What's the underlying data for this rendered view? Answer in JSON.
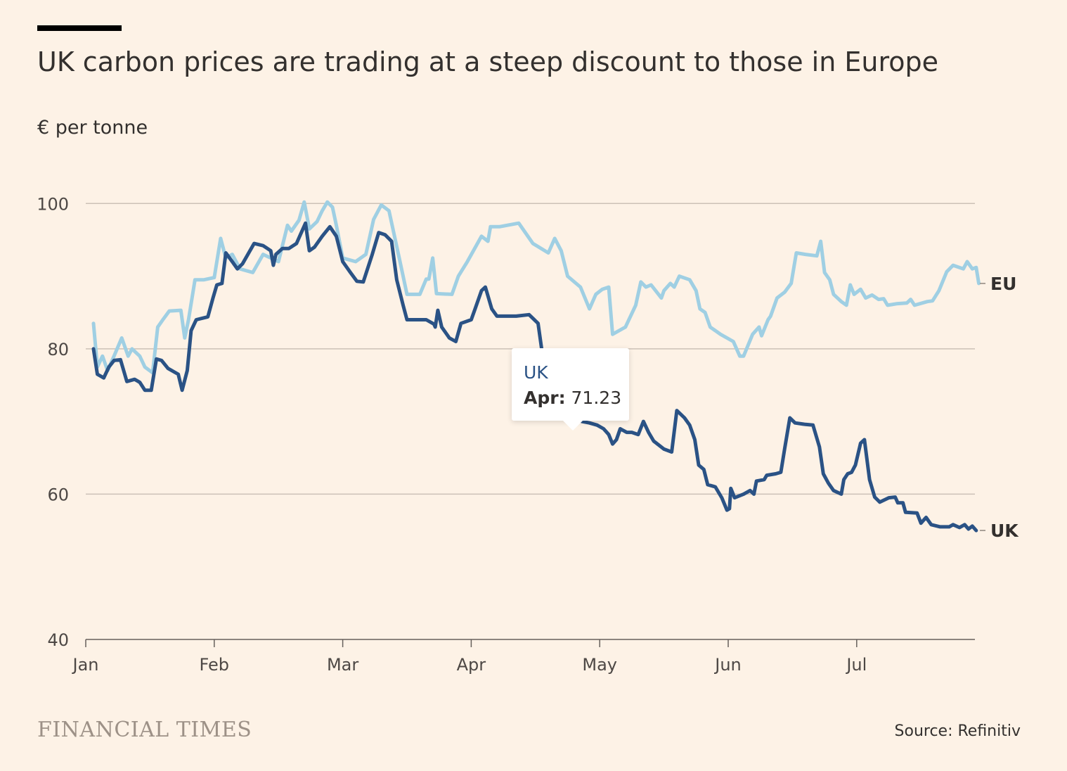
{
  "header": {
    "title": "UK carbon prices are trading at a steep discount to those in Europe",
    "unit_label": "€ per tonne"
  },
  "tooltip": {
    "series": "UK",
    "label": "Apr:",
    "value": "71.23"
  },
  "footer": {
    "brand": "FINANCIAL TIMES",
    "source": "Source: Refinitiv"
  },
  "colors": {
    "background": "#fdf2e6",
    "uk_series": "#2a5285",
    "eu_series": "#9fcfe3",
    "gridline": "#ccc1b7",
    "text": "#33302e"
  },
  "chart_data": {
    "type": "line",
    "ylabel": "€ per tonne",
    "ylim": [
      40,
      110
    ],
    "yticks": [
      40,
      60,
      80,
      100
    ],
    "xlim": [
      0,
      6.85
    ],
    "xticks": [
      {
        "value": 0,
        "label": "Jan"
      },
      {
        "value": 1,
        "label": "Feb"
      },
      {
        "value": 2,
        "label": "Mar"
      },
      {
        "value": 3,
        "label": "Apr"
      },
      {
        "value": 4,
        "label": "May"
      },
      {
        "value": 5,
        "label": "Jun"
      },
      {
        "value": 6,
        "label": "Jul"
      }
    ],
    "grid": true,
    "series": [
      {
        "name": "EU",
        "label_position": "end",
        "points": [
          [
            0.06,
            83.5
          ],
          [
            0.09,
            77.5
          ],
          [
            0.13,
            79
          ],
          [
            0.17,
            77
          ],
          [
            0.22,
            79
          ],
          [
            0.28,
            81.5
          ],
          [
            0.33,
            79
          ],
          [
            0.36,
            80
          ],
          [
            0.42,
            79
          ],
          [
            0.46,
            77.5
          ],
          [
            0.52,
            76.7
          ],
          [
            0.56,
            83
          ],
          [
            0.6,
            84
          ],
          [
            0.65,
            85.2
          ],
          [
            0.74,
            85.3
          ],
          [
            0.77,
            81.5
          ],
          [
            0.8,
            84
          ],
          [
            0.85,
            89.5
          ],
          [
            0.92,
            89.5
          ],
          [
            1,
            89.8
          ],
          [
            1.05,
            95.2
          ],
          [
            1.09,
            92.5
          ],
          [
            1.14,
            93
          ],
          [
            1.2,
            91
          ],
          [
            1.3,
            90.5
          ],
          [
            1.38,
            93
          ],
          [
            1.5,
            92
          ],
          [
            1.57,
            97
          ],
          [
            1.6,
            96.2
          ],
          [
            1.66,
            97.7
          ],
          [
            1.7,
            100.2
          ],
          [
            1.74,
            96.5
          ],
          [
            1.8,
            97.5
          ],
          [
            1.84,
            99
          ],
          [
            1.88,
            100.2
          ],
          [
            1.92,
            99.5
          ],
          [
            1.95,
            97
          ],
          [
            2,
            92.5
          ],
          [
            2.1,
            92
          ],
          [
            2.18,
            93
          ],
          [
            2.24,
            97.8
          ],
          [
            2.3,
            99.8
          ],
          [
            2.36,
            99
          ],
          [
            2.44,
            92.5
          ],
          [
            2.5,
            87.5
          ],
          [
            2.6,
            87.5
          ],
          [
            2.65,
            89.6
          ],
          [
            2.67,
            89.6
          ],
          [
            2.7,
            92.5
          ],
          [
            2.73,
            87.6
          ],
          [
            2.85,
            87.5
          ],
          [
            2.9,
            90
          ],
          [
            2.97,
            92
          ],
          [
            3.08,
            95.5
          ],
          [
            3.13,
            94.8
          ],
          [
            3.15,
            96.8
          ],
          [
            3.22,
            96.8
          ],
          [
            3.37,
            97.3
          ],
          [
            3.48,
            94.5
          ],
          [
            3.6,
            93.2
          ],
          [
            3.65,
            95.2
          ],
          [
            3.7,
            93.5
          ],
          [
            3.75,
            90
          ],
          [
            3.85,
            88.5
          ],
          [
            3.92,
            85.5
          ],
          [
            3.97,
            87.5
          ],
          [
            4.02,
            88.2
          ],
          [
            4.07,
            88.5
          ],
          [
            4.1,
            82
          ],
          [
            4.2,
            83
          ],
          [
            4.28,
            86
          ],
          [
            4.32,
            89.2
          ],
          [
            4.36,
            88.5
          ],
          [
            4.4,
            88.8
          ],
          [
            4.48,
            87
          ],
          [
            4.5,
            88
          ],
          [
            4.55,
            89
          ],
          [
            4.58,
            88.5
          ],
          [
            4.62,
            90
          ],
          [
            4.7,
            89.5
          ],
          [
            4.75,
            88
          ],
          [
            4.78,
            85.5
          ],
          [
            4.82,
            85
          ],
          [
            4.86,
            83
          ],
          [
            4.94,
            82
          ],
          [
            5.04,
            81
          ],
          [
            5.09,
            79
          ],
          [
            5.12,
            79
          ],
          [
            5.19,
            82
          ],
          [
            5.24,
            83
          ],
          [
            5.26,
            81.8
          ],
          [
            5.31,
            84
          ],
          [
            5.33,
            84.5
          ],
          [
            5.38,
            87
          ],
          [
            5.44,
            87.8
          ],
          [
            5.49,
            89
          ],
          [
            5.53,
            93.2
          ],
          [
            5.6,
            93
          ],
          [
            5.69,
            92.8
          ],
          [
            5.72,
            94.8
          ],
          [
            5.75,
            90.5
          ],
          [
            5.79,
            89.5
          ],
          [
            5.82,
            87.5
          ],
          [
            5.88,
            86.5
          ],
          [
            5.92,
            86
          ],
          [
            5.95,
            88.8
          ],
          [
            5.98,
            87.5
          ],
          [
            6.03,
            88.2
          ],
          [
            6.07,
            87
          ],
          [
            6.12,
            87.4
          ],
          [
            6.17,
            86.8
          ],
          [
            6.21,
            86.9
          ],
          [
            6.24,
            86
          ],
          [
            6.31,
            86.2
          ],
          [
            6.39,
            86.3
          ],
          [
            6.42,
            86.8
          ],
          [
            6.45,
            86
          ],
          [
            6.55,
            86.5
          ],
          [
            6.59,
            86.6
          ],
          [
            6.64,
            88
          ],
          [
            6.7,
            90.6
          ],
          [
            6.75,
            91.5
          ],
          [
            6.83,
            91
          ],
          [
            6.86,
            92
          ],
          [
            6.9,
            91
          ],
          [
            6.93,
            91.2
          ],
          [
            6.95,
            89
          ]
        ]
      },
      {
        "name": "UK",
        "label_position": "end",
        "points": [
          [
            0.06,
            80
          ],
          [
            0.09,
            76.5
          ],
          [
            0.14,
            76
          ],
          [
            0.18,
            77.5
          ],
          [
            0.22,
            78.4
          ],
          [
            0.27,
            78.5
          ],
          [
            0.32,
            75.5
          ],
          [
            0.38,
            75.8
          ],
          [
            0.42,
            75.4
          ],
          [
            0.46,
            74.3
          ],
          [
            0.51,
            74.3
          ],
          [
            0.55,
            78.6
          ],
          [
            0.59,
            78.4
          ],
          [
            0.64,
            77.3
          ],
          [
            0.72,
            76.5
          ],
          [
            0.75,
            74.3
          ],
          [
            0.79,
            77
          ],
          [
            0.82,
            82.5
          ],
          [
            0.86,
            84
          ],
          [
            0.95,
            84.4
          ],
          [
            0.99,
            87
          ],
          [
            1.02,
            88.8
          ],
          [
            1.06,
            89
          ],
          [
            1.09,
            93.2
          ],
          [
            1.14,
            92
          ],
          [
            1.18,
            91
          ],
          [
            1.22,
            91.7
          ],
          [
            1.31,
            94.5
          ],
          [
            1.38,
            94.2
          ],
          [
            1.44,
            93.5
          ],
          [
            1.46,
            91.5
          ],
          [
            1.48,
            93
          ],
          [
            1.53,
            93.8
          ],
          [
            1.58,
            93.8
          ],
          [
            1.64,
            94.5
          ],
          [
            1.71,
            97.3
          ],
          [
            1.74,
            93.5
          ],
          [
            1.78,
            94
          ],
          [
            1.84,
            95.5
          ],
          [
            1.9,
            96.8
          ],
          [
            1.95,
            95.5
          ],
          [
            2,
            92
          ],
          [
            2.06,
            90.5
          ],
          [
            2.11,
            89.3
          ],
          [
            2.16,
            89.2
          ],
          [
            2.23,
            93
          ],
          [
            2.28,
            96
          ],
          [
            2.33,
            95.7
          ],
          [
            2.38,
            94.8
          ],
          [
            2.42,
            89.5
          ],
          [
            2.47,
            86
          ],
          [
            2.5,
            84
          ],
          [
            2.58,
            84
          ],
          [
            2.65,
            84
          ],
          [
            2.71,
            83.4
          ],
          [
            2.72,
            83
          ],
          [
            2.74,
            85.3
          ],
          [
            2.77,
            83
          ],
          [
            2.83,
            81.5
          ],
          [
            2.88,
            81
          ],
          [
            2.92,
            83.5
          ],
          [
            3,
            84
          ],
          [
            3.03,
            85.5
          ],
          [
            3.08,
            88
          ],
          [
            3.11,
            88.5
          ],
          [
            3.16,
            85.5
          ],
          [
            3.2,
            84.5
          ],
          [
            3.35,
            84.5
          ],
          [
            3.45,
            84.7
          ],
          [
            3.52,
            83.5
          ],
          [
            3.58,
            76
          ],
          [
            3.62,
            74
          ],
          [
            3.65,
            71.5
          ],
          [
            3.72,
            71.5
          ],
          [
            3.82,
            71.5
          ],
          [
            3.86,
            70
          ],
          [
            3.92,
            69.8
          ],
          [
            3.98,
            69.5
          ],
          [
            4.03,
            69
          ],
          [
            4.07,
            68.2
          ],
          [
            4.1,
            66.9
          ],
          [
            4.13,
            67.5
          ],
          [
            4.16,
            69
          ],
          [
            4.21,
            68.5
          ],
          [
            4.25,
            68.5
          ],
          [
            4.3,
            68.2
          ],
          [
            4.34,
            70
          ],
          [
            4.38,
            68.5
          ],
          [
            4.42,
            67.3
          ],
          [
            4.5,
            66.2
          ],
          [
            4.56,
            65.8
          ],
          [
            4.6,
            71.5
          ],
          [
            4.66,
            70.5
          ],
          [
            4.7,
            69.5
          ],
          [
            4.74,
            67.5
          ],
          [
            4.77,
            64
          ],
          [
            4.81,
            63.4
          ],
          [
            4.84,
            61.3
          ],
          [
            4.9,
            61
          ],
          [
            4.95,
            59.5
          ],
          [
            4.99,
            57.8
          ],
          [
            5.01,
            58
          ],
          [
            5.02,
            60.8
          ],
          [
            5.05,
            59.5
          ],
          [
            5.12,
            60
          ],
          [
            5.17,
            60.5
          ],
          [
            5.2,
            60
          ],
          [
            5.22,
            61.8
          ],
          [
            5.28,
            62
          ],
          [
            5.3,
            62.6
          ],
          [
            5.37,
            62.8
          ],
          [
            5.41,
            63
          ],
          [
            5.44,
            66.3
          ],
          [
            5.48,
            70.5
          ],
          [
            5.52,
            69.8
          ],
          [
            5.6,
            69.6
          ],
          [
            5.66,
            69.5
          ],
          [
            5.71,
            66.5
          ],
          [
            5.74,
            62.8
          ],
          [
            5.78,
            61.5
          ],
          [
            5.82,
            60.5
          ],
          [
            5.88,
            60
          ],
          [
            5.9,
            62
          ],
          [
            5.93,
            62.8
          ],
          [
            5.96,
            63
          ],
          [
            5.99,
            64
          ],
          [
            6.03,
            67
          ],
          [
            6.06,
            67.5
          ],
          [
            6.1,
            62
          ],
          [
            6.14,
            59.6
          ],
          [
            6.18,
            58.9
          ],
          [
            6.25,
            59.5
          ],
          [
            6.3,
            59.6
          ],
          [
            6.32,
            58.8
          ],
          [
            6.36,
            58.8
          ],
          [
            6.38,
            57.5
          ],
          [
            6.47,
            57.4
          ],
          [
            6.5,
            56
          ],
          [
            6.54,
            56.8
          ],
          [
            6.58,
            55.8
          ],
          [
            6.65,
            55.5
          ],
          [
            6.72,
            55.5
          ],
          [
            6.75,
            55.8
          ],
          [
            6.8,
            55.4
          ],
          [
            6.84,
            55.8
          ],
          [
            6.87,
            55.2
          ],
          [
            6.9,
            55.6
          ],
          [
            6.93,
            55
          ]
        ]
      }
    ]
  }
}
